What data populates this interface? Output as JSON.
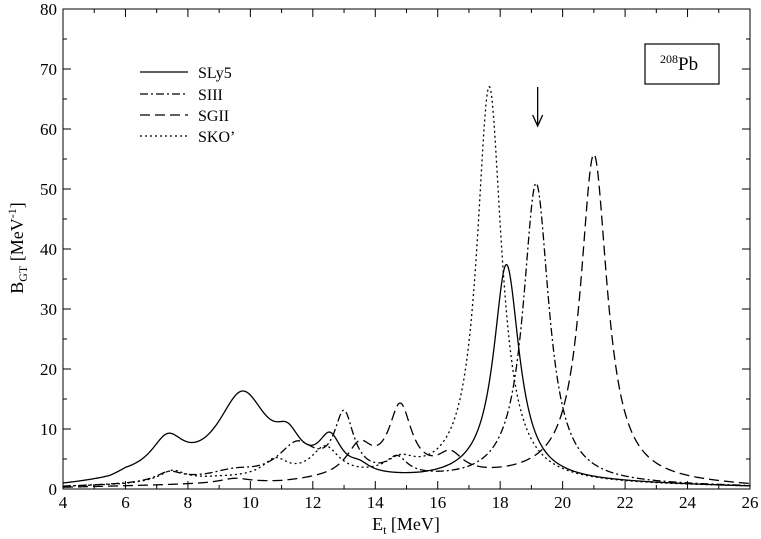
{
  "chart_data": {
    "type": "line",
    "xlabel": {
      "main": "E",
      "sub": "t",
      "unit": " [MeV]"
    },
    "ylabel": {
      "main": "B",
      "sub": "GT",
      "unit_pre": "  [MeV",
      "unit_sup": "-1",
      "unit_post": "]"
    },
    "xlim": [
      4,
      26
    ],
    "ylim": [
      0,
      80
    ],
    "xticks": [
      4,
      6,
      8,
      10,
      12,
      14,
      16,
      18,
      20,
      22,
      24,
      26
    ],
    "yticks": [
      0,
      10,
      20,
      30,
      40,
      50,
      60,
      70,
      80
    ],
    "grid": false,
    "legend_position": "top-left",
    "nucleus_label": {
      "sup": "208",
      "text": "Pb"
    },
    "arrow_marker": {
      "x": 19.2,
      "y_top": 67,
      "y_bottom": 60.5
    },
    "series": [
      {
        "name": "SLy5",
        "dash": "",
        "peaks": [
          [
            7.35,
            5.6,
            0.65
          ],
          [
            9.75,
            14.0,
            1.0
          ],
          [
            11.2,
            4.5,
            0.5
          ],
          [
            12.55,
            5.8,
            0.45
          ],
          [
            13.5,
            1.2,
            0.4
          ],
          [
            18.2,
            36.0,
            0.5
          ]
        ],
        "baseline": [
          [
            4,
            0.3
          ],
          [
            5.5,
            0.8
          ],
          [
            6.0,
            1.5
          ],
          [
            12.0,
            1.0
          ],
          [
            15.5,
            1.0
          ],
          [
            17.0,
            1.2
          ],
          [
            20.0,
            1.0
          ],
          [
            26,
            0.3
          ]
        ]
      },
      {
        "name": "SIII",
        "dash": "8,3,2,3",
        "peaks": [
          [
            7.4,
            1.5,
            0.5
          ],
          [
            9.5,
            1.0,
            0.8
          ],
          [
            11.5,
            5.5,
            0.75
          ],
          [
            13.0,
            10.0,
            0.38
          ],
          [
            14.7,
            2.8,
            0.4
          ],
          [
            19.15,
            50.0,
            0.5
          ]
        ],
        "baseline": [
          [
            4,
            0.3
          ],
          [
            6.0,
            0.6
          ],
          [
            9.0,
            1.5
          ],
          [
            11.0,
            1.5
          ],
          [
            14.0,
            1.5
          ],
          [
            17.0,
            1.0
          ],
          [
            26,
            0.3
          ]
        ]
      },
      {
        "name": "SGII",
        "dash": "10,5",
        "peaks": [
          [
            9.5,
            0.8,
            0.6
          ],
          [
            13.5,
            5.0,
            0.5
          ],
          [
            14.8,
            11.5,
            0.45
          ],
          [
            16.4,
            3.3,
            0.5
          ],
          [
            21.0,
            54.5,
            0.52
          ]
        ],
        "baseline": [
          [
            4,
            0.2
          ],
          [
            8.0,
            0.6
          ],
          [
            11.0,
            0.8
          ],
          [
            13.0,
            1.5
          ],
          [
            17.0,
            1.5
          ],
          [
            19.0,
            1.5
          ],
          [
            26,
            0.3
          ]
        ]
      },
      {
        "name": "SKO’",
        "dash": "2,3",
        "peaks": [
          [
            7.5,
            1.8,
            0.5
          ],
          [
            10.8,
            2.8,
            0.5
          ],
          [
            12.4,
            4.8,
            0.55
          ],
          [
            14.8,
            2.5,
            0.6
          ],
          [
            17.65,
            66.0,
            0.48
          ]
        ],
        "baseline": [
          [
            4,
            0.3
          ],
          [
            6.0,
            0.6
          ],
          [
            9.0,
            1.5
          ],
          [
            12.0,
            1.5
          ],
          [
            16.0,
            1.0
          ],
          [
            26,
            0.3
          ]
        ]
      }
    ]
  }
}
